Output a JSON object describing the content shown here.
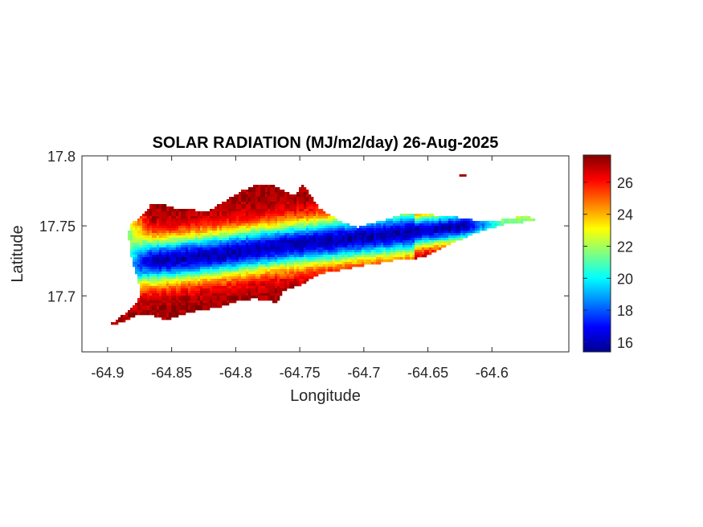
{
  "chart_data": {
    "type": "heatmap",
    "title": "SOLAR RADIATION (MJ/m2/day) 26-Aug-2025",
    "xlabel": "Longitude",
    "ylabel": "Latitude",
    "xlim": [
      -64.92,
      -64.54
    ],
    "ylim": [
      17.66,
      17.8
    ],
    "xticks": [
      -64.9,
      -64.85,
      -64.8,
      -64.75,
      -64.7,
      -64.65,
      -64.6
    ],
    "xtick_labels": [
      "-64.9",
      "-64.85",
      "-64.8",
      "-64.75",
      "-64.7",
      "-64.65",
      "-64.6"
    ],
    "yticks": [
      17.7,
      17.75,
      17.8
    ],
    "ytick_labels": [
      "17.7",
      "17.75",
      "17.8"
    ],
    "colorbar": {
      "colormap": "jet",
      "clim": [
        15.4,
        27.7
      ],
      "ticks": [
        16,
        18,
        20,
        22,
        24,
        26
      ],
      "tick_labels": [
        "16",
        "18",
        "20",
        "22",
        "24",
        "26"
      ]
    },
    "field": {
      "description_units": "MJ/m2/day",
      "island_outline_lonlat": [
        [
          -64.899,
          17.679
        ],
        [
          -64.892,
          17.683
        ],
        [
          -64.886,
          17.688
        ],
        [
          -64.88,
          17.692
        ],
        [
          -64.876,
          17.697
        ],
        [
          -64.875,
          17.707
        ],
        [
          -64.878,
          17.716
        ],
        [
          -64.882,
          17.729
        ],
        [
          -64.884,
          17.745
        ],
        [
          -64.881,
          17.752
        ],
        [
          -64.872,
          17.758
        ],
        [
          -64.866,
          17.766
        ],
        [
          -64.856,
          17.765
        ],
        [
          -64.846,
          17.762
        ],
        [
          -64.836,
          17.762
        ],
        [
          -64.823,
          17.76
        ],
        [
          -64.808,
          17.768
        ],
        [
          -64.795,
          17.775
        ],
        [
          -64.784,
          17.78
        ],
        [
          -64.772,
          17.78
        ],
        [
          -64.762,
          17.775
        ],
        [
          -64.754,
          17.772
        ],
        [
          -64.748,
          17.779
        ],
        [
          -64.742,
          17.773
        ],
        [
          -64.735,
          17.763
        ],
        [
          -64.725,
          17.757
        ],
        [
          -64.715,
          17.752
        ],
        [
          -64.705,
          17.749
        ],
        [
          -64.698,
          17.751
        ],
        [
          -64.69,
          17.753
        ],
        [
          -64.68,
          17.755
        ],
        [
          -64.672,
          17.758
        ],
        [
          -64.66,
          17.759
        ],
        [
          -64.648,
          17.758
        ],
        [
          -64.636,
          17.757
        ],
        [
          -64.625,
          17.756
        ],
        [
          -64.612,
          17.754
        ],
        [
          -64.6,
          17.753
        ],
        [
          -64.59,
          17.755
        ],
        [
          -64.575,
          17.757
        ],
        [
          -64.565,
          17.755
        ],
        [
          -64.572,
          17.753
        ],
        [
          -64.59,
          17.751
        ],
        [
          -64.602,
          17.748
        ],
        [
          -64.615,
          17.744
        ],
        [
          -64.63,
          17.738
        ],
        [
          -64.643,
          17.732
        ],
        [
          -64.656,
          17.727
        ],
        [
          -64.672,
          17.726
        ],
        [
          -64.69,
          17.723
        ],
        [
          -64.705,
          17.721
        ],
        [
          -64.72,
          17.718
        ],
        [
          -64.734,
          17.716
        ],
        [
          -64.742,
          17.712
        ],
        [
          -64.748,
          17.708
        ],
        [
          -64.755,
          17.706
        ],
        [
          -64.762,
          17.704
        ],
        [
          -64.765,
          17.7
        ],
        [
          -64.768,
          17.695
        ],
        [
          -64.776,
          17.697
        ],
        [
          -64.786,
          17.698
        ],
        [
          -64.8,
          17.696
        ],
        [
          -64.812,
          17.692
        ],
        [
          -64.825,
          17.69
        ],
        [
          -64.838,
          17.688
        ],
        [
          -64.848,
          17.684
        ],
        [
          -64.856,
          17.683
        ],
        [
          -64.866,
          17.686
        ],
        [
          -64.878,
          17.686
        ],
        [
          -64.888,
          17.681
        ]
      ],
      "islet_lonlat": [
        -64.623,
        17.786
      ],
      "low_band_axis_lonlat": [
        [
          -64.88,
          17.724
        ],
        [
          -64.85,
          17.726
        ],
        [
          -64.81,
          17.73
        ],
        [
          -64.77,
          17.735
        ],
        [
          -64.73,
          17.739
        ],
        [
          -64.7,
          17.742
        ],
        [
          -64.66,
          17.746
        ],
        [
          -64.63,
          17.749
        ],
        [
          -64.6,
          17.752
        ]
      ],
      "band_min_value": 16.0,
      "band_halfwidth_lat": 0.016,
      "background_value": 27.3,
      "west_edge_value": 21.5
    }
  }
}
